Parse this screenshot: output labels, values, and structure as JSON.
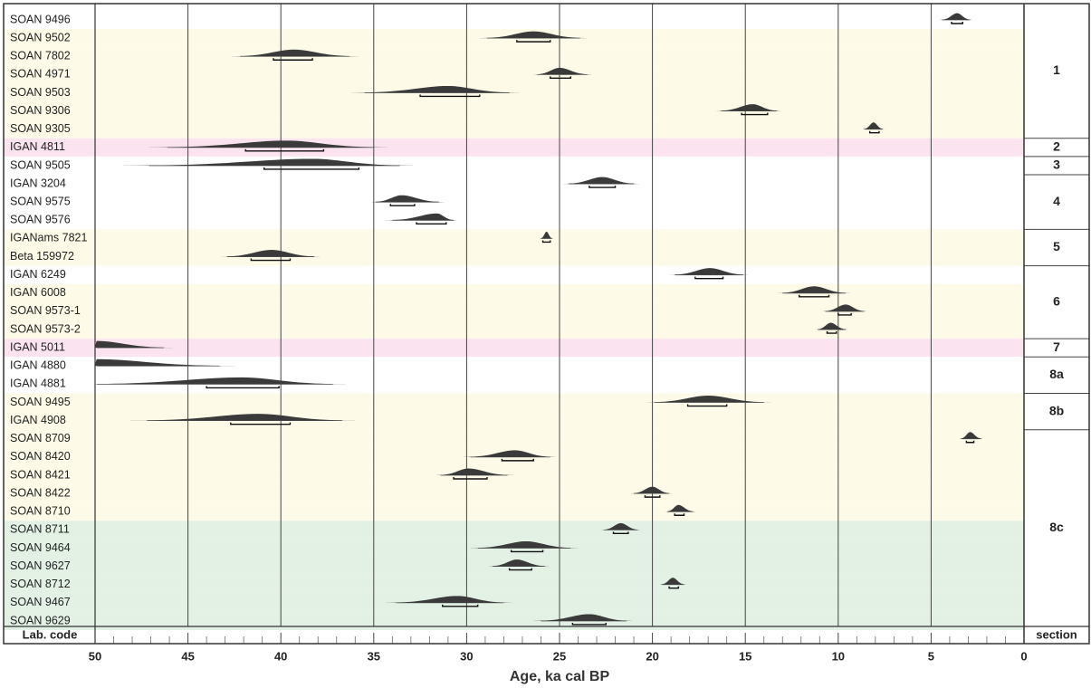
{
  "chart_data": {
    "type": "calibration",
    "x_label": "Age, ka cal BP",
    "xlim": [
      50,
      0
    ],
    "xticks": [
      50,
      45,
      40,
      35,
      30,
      25,
      20,
      15,
      10,
      5,
      0
    ],
    "xticks_minor": [
      49,
      48,
      47,
      46,
      44,
      43,
      42,
      41,
      39,
      38,
      37,
      36,
      34,
      33,
      32,
      31,
      29,
      28,
      27,
      26,
      24,
      23,
      22,
      21,
      19,
      18,
      17,
      16,
      14,
      13,
      12,
      11,
      9,
      8,
      7,
      6,
      4,
      3,
      2,
      1
    ],
    "column_headers": {
      "label": "Lab. code",
      "section": "section"
    },
    "curve_color": "#3a3a3a",
    "samples": [
      {
        "label": "SOAN 9496",
        "peak": 3.6,
        "sigma1": [
          3.9,
          3.3
        ],
        "sigma2": [
          4.4,
          2.9
        ],
        "band": "#ffffff"
      },
      {
        "label": "SOAN 9502",
        "peak": 26.4,
        "sigma1": [
          27.3,
          25.5
        ],
        "sigma2": [
          28.9,
          23.9
        ],
        "band": "#fdfbe8"
      },
      {
        "label": "SOAN 7802",
        "peak": 39.3,
        "sigma1": [
          40.4,
          38.3
        ],
        "sigma2": [
          42.2,
          36.3
        ],
        "band": "#fdfbe8"
      },
      {
        "label": "SOAN 4971",
        "peak": 25.0,
        "sigma1": [
          25.5,
          24.4
        ],
        "sigma2": [
          26.2,
          23.5
        ],
        "band": "#fdfbe8"
      },
      {
        "label": "SOAN 9503",
        "peak": 31.0,
        "sigma1": [
          32.5,
          29.3
        ],
        "sigma2": [
          35.5,
          27.7
        ],
        "band": "#fdfbe8"
      },
      {
        "label": "SOAN 9306",
        "peak": 14.6,
        "sigma1": [
          15.2,
          13.8
        ],
        "sigma2": [
          16.3,
          13.3
        ],
        "band": "#fdfbe8"
      },
      {
        "label": "SOAN 9305",
        "peak": 8.1,
        "sigma1": [
          8.3,
          7.8
        ],
        "sigma2": [
          8.6,
          7.6
        ],
        "band": "#fdfbe8"
      },
      {
        "label": "IGAN 4811",
        "peak": 39.7,
        "sigma1": [
          41.9,
          37.7
        ],
        "sigma2": [
          46.1,
          35.0
        ],
        "band": "#fbe3f0"
      },
      {
        "label": "SOAN 9505",
        "peak": 38.3,
        "sigma1": [
          40.9,
          35.8
        ],
        "sigma2": [
          47.1,
          33.6
        ],
        "band": "#ffffff"
      },
      {
        "label": "IGAN 3204",
        "peak": 22.7,
        "sigma1": [
          23.4,
          22.0
        ],
        "sigma2": [
          24.5,
          21.0
        ],
        "band": "#ffffff"
      },
      {
        "label": "SOAN 9575",
        "peak": 33.5,
        "sigma1": [
          34.1,
          32.8
        ],
        "sigma2": [
          34.9,
          31.5
        ],
        "band": "#ffffff"
      },
      {
        "label": "SOAN 9576",
        "peak": 31.6,
        "sigma1": [
          32.7,
          31.1
        ],
        "sigma2": [
          34.0,
          30.7
        ],
        "band": "#ffffff"
      },
      {
        "label": "IGANams 7821",
        "peak": 25.7,
        "sigma1": [
          25.9,
          25.5
        ],
        "sigma2": [
          26.0,
          25.4
        ],
        "band": "#fdfbe8"
      },
      {
        "label": "Beta 159972",
        "peak": 40.5,
        "sigma1": [
          41.6,
          39.5
        ],
        "sigma2": [
          42.9,
          38.2
        ],
        "band": "#fdfbe8"
      },
      {
        "label": "IGAN 6249",
        "peak": 16.9,
        "sigma1": [
          17.7,
          16.2
        ],
        "sigma2": [
          18.8,
          15.1
        ],
        "band": "#ffffff"
      },
      {
        "label": "IGAN 6008",
        "peak": 11.3,
        "sigma1": [
          12.1,
          10.5
        ],
        "sigma2": [
          13.0,
          9.6
        ],
        "band": "#fdfbe8"
      },
      {
        "label": "SOAN 9573-1",
        "peak": 9.6,
        "sigma1": [
          10.0,
          9.3
        ],
        "sigma2": [
          10.7,
          8.6
        ],
        "band": "#fdfbe8"
      },
      {
        "label": "SOAN 9573-2",
        "peak": 10.4,
        "sigma1": [
          10.6,
          10.1
        ],
        "sigma2": [
          11.1,
          9.6
        ],
        "band": "#fdfbe8"
      },
      {
        "label": "IGAN 5011",
        "peak": 49.9,
        "sigma1": null,
        "sigma2": [
          49.9,
          46.3
        ],
        "band": "#fbe3f0"
      },
      {
        "label": "IGAN 4880",
        "peak": 49.9,
        "sigma1": null,
        "sigma2": [
          49.9,
          43.3
        ],
        "band": "#ffffff"
      },
      {
        "label": "IGAN 4881",
        "peak": 42.1,
        "sigma1": [
          44.0,
          40.1
        ],
        "sigma2": [
          49.9,
          37.2
        ],
        "band": "#ffffff"
      },
      {
        "label": "SOAN 9495",
        "peak": 17.0,
        "sigma1": [
          18.1,
          16.0
        ],
        "sigma2": [
          19.9,
          14.0
        ],
        "band": "#fdfbe8"
      },
      {
        "label": "IGAN 4908",
        "peak": 41.2,
        "sigma1": [
          42.7,
          39.5
        ],
        "sigma2": [
          47.2,
          36.7
        ],
        "band": "#fdfbe8"
      },
      {
        "label": "SOAN 8709",
        "peak": 2.9,
        "sigma1": [
          3.1,
          2.7
        ],
        "sigma2": [
          3.4,
          2.3
        ],
        "band": "#fdfbe8"
      },
      {
        "label": "SOAN 8420",
        "peak": 27.4,
        "sigma1": [
          28.1,
          26.4
        ],
        "sigma2": [
          29.8,
          25.5
        ],
        "band": "#fdfbe8"
      },
      {
        "label": "SOAN 8421",
        "peak": 29.9,
        "sigma1": [
          30.7,
          28.9
        ],
        "sigma2": [
          31.4,
          27.8
        ],
        "band": "#fdfbe8"
      },
      {
        "label": "SOAN 8422",
        "peak": 20.0,
        "sigma1": [
          20.4,
          19.6
        ],
        "sigma2": [
          21.0,
          19.1
        ],
        "band": "#fdfbe8"
      },
      {
        "label": "SOAN 8710",
        "peak": 18.6,
        "sigma1": [
          18.8,
          18.3
        ],
        "sigma2": [
          19.2,
          17.8
        ],
        "band": "#fdfbe8"
      },
      {
        "label": "SOAN 8711",
        "peak": 21.7,
        "sigma1": [
          22.1,
          21.3
        ],
        "sigma2": [
          22.6,
          20.8
        ],
        "band": "#e3f1e5"
      },
      {
        "label": "SOAN 9464",
        "peak": 26.8,
        "sigma1": [
          27.6,
          25.9
        ],
        "sigma2": [
          29.4,
          24.4
        ],
        "band": "#e3f1e5"
      },
      {
        "label": "SOAN 9627",
        "peak": 27.3,
        "sigma1": [
          27.7,
          26.5
        ],
        "sigma2": [
          28.6,
          25.8
        ],
        "band": "#e3f1e5"
      },
      {
        "label": "SOAN 8712",
        "peak": 18.9,
        "sigma1": [
          19.1,
          18.6
        ],
        "sigma2": [
          19.5,
          18.3
        ],
        "band": "#e3f1e5"
      },
      {
        "label": "SOAN 9467",
        "peak": 30.5,
        "sigma1": [
          31.3,
          29.4
        ],
        "sigma2": [
          33.8,
          28.0
        ],
        "band": "#e3f1e5"
      },
      {
        "label": "SOAN 9629",
        "peak": 23.4,
        "sigma1": [
          24.3,
          22.5
        ],
        "sigma2": [
          26.0,
          21.4
        ],
        "band": "#e3f1e5"
      }
    ],
    "sections": [
      {
        "label": "1",
        "rows": [
          0,
          6
        ]
      },
      {
        "label": "2",
        "rows": [
          7,
          7
        ]
      },
      {
        "label": "3",
        "rows": [
          8,
          8
        ]
      },
      {
        "label": "4",
        "rows": [
          9,
          11
        ]
      },
      {
        "label": "5",
        "rows": [
          12,
          13
        ]
      },
      {
        "label": "6",
        "rows": [
          14,
          17
        ]
      },
      {
        "label": "7",
        "rows": [
          18,
          18
        ]
      },
      {
        "label": "8a",
        "rows": [
          19,
          20
        ]
      },
      {
        "label": "8b",
        "rows": [
          21,
          22
        ]
      },
      {
        "label": "8c",
        "rows": [
          23,
          33
        ]
      }
    ]
  }
}
